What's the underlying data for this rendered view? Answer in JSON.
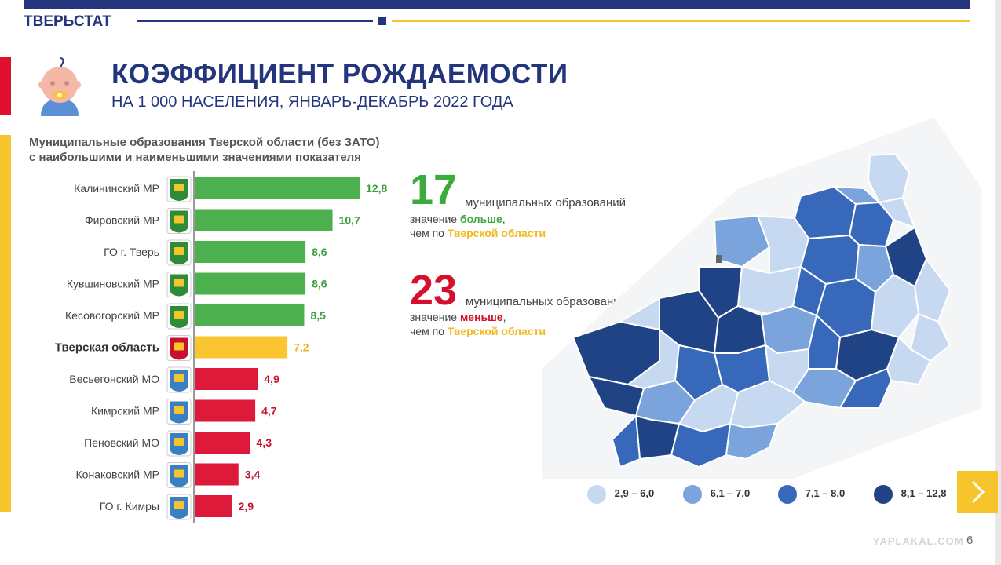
{
  "header": {
    "brand": "ТВЕРЬСТАТ"
  },
  "title": "КОЭФФИЦИЕНТ РОЖДАЕМОСТИ",
  "subtitle": "НА 1 000 НАСЕЛЕНИЯ, ЯНВАРЬ-ДЕКАБРЬ 2022 ГОДА",
  "chart_title": [
    "Муниципальные образования Тверской области (без ЗАТО)",
    "с наибольшими и наименьшими значениями показателя"
  ],
  "chart_data": {
    "type": "bar",
    "orientation": "horizontal",
    "title": "Муниципальные образования Тверской области (без ЗАТО) с наибольшими и наименьшими значениями показателя",
    "categories": [
      "Калининский МР",
      "Фировский МР",
      "ГО г. Тверь",
      "Кувшиновский МР",
      "Кесовогорский МР",
      "Тверская область",
      "Весьегонский МО",
      "Кимрский МР",
      "Пеновский МО",
      "Конаковский МР",
      "ГО г. Кимры"
    ],
    "values": [
      12.8,
      10.7,
      8.6,
      8.6,
      8.5,
      7.2,
      4.9,
      4.7,
      4.3,
      3.4,
      2.9
    ],
    "value_labels": [
      "12,8",
      "10,7",
      "8,6",
      "8,6",
      "8,5",
      "7,2",
      "4,9",
      "4,7",
      "4,3",
      "3,4",
      "2,9"
    ],
    "groups": [
      "high",
      "high",
      "high",
      "high",
      "high",
      "region",
      "low",
      "low",
      "low",
      "low",
      "low"
    ],
    "colors": {
      "high": "#4cb04f",
      "region": "#fbc531",
      "low": "#de1a3b"
    },
    "label_colors": {
      "high": "#3a9e3c",
      "region": "#e8b420",
      "low": "#c8102e"
    },
    "xlim": [
      0,
      14
    ]
  },
  "stats": {
    "more": {
      "number": "17",
      "line1": "муниципальных образований",
      "pre": "значение ",
      "keyword": "больше",
      "post": ",",
      "line3": "чем по ",
      "region": "Тверской области"
    },
    "less": {
      "number": "23",
      "line1": "муниципальных образования",
      "pre": "значение ",
      "keyword": "меньше",
      "post": ",",
      "line3": "чем по ",
      "region": "Тверской области"
    }
  },
  "legend": [
    {
      "label": "2,9 – 6,0",
      "color": "#c7d9f0"
    },
    {
      "label": "6,1 – 7,0",
      "color": "#7ba3dc"
    },
    {
      "label": "7,1 – 8,0",
      "color": "#3768ba"
    },
    {
      "label": "8,1 – 12,8",
      "color": "#1f4384"
    }
  ],
  "map_colors": {
    "c1": "#c7d9f0",
    "c2": "#7ba3dc",
    "c3": "#3768ba",
    "c4": "#1f4384"
  },
  "page_number": "6",
  "watermark": "YAPLAKAL.COM"
}
